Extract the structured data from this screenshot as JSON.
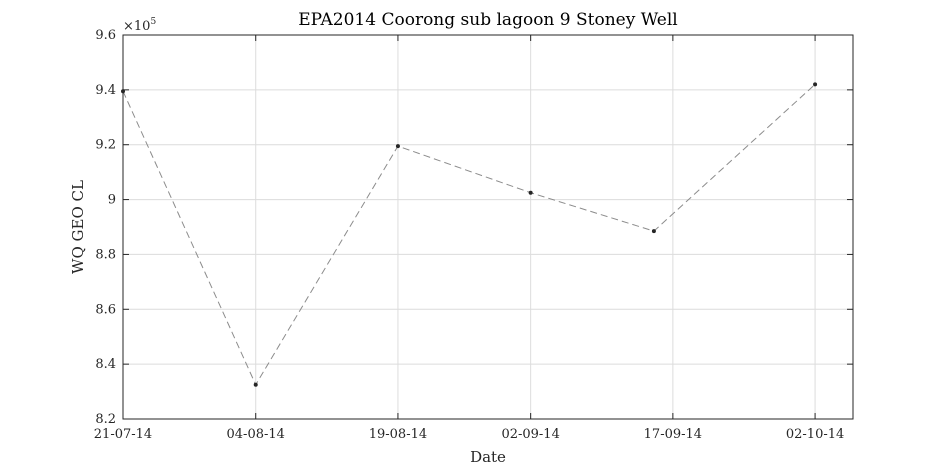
{
  "chart_data": {
    "type": "line",
    "title": "EPA2014 Coorong sub lagoon 9 Stoney Well",
    "xlabel": "Date",
    "ylabel": "WQ GEO CL",
    "y_exponent_label": "×10",
    "y_exponent": "5",
    "x_ticks": [
      "21-07-14",
      "04-08-14",
      "19-08-14",
      "02-09-14",
      "17-09-14",
      "02-10-14"
    ],
    "y_ticks": [
      "8.2",
      "8.4",
      "8.6",
      "8.8",
      "9",
      "9.2",
      "9.4",
      "9.6"
    ],
    "xlim": [
      "2014-07-21",
      "2014-10-06"
    ],
    "ylim": [
      820000,
      960000
    ],
    "grid": true,
    "series": [
      {
        "color": "#8c8c8c",
        "marker_color": "#262626",
        "line_style": "dashed",
        "points": [
          {
            "x": "2014-07-21",
            "y": 939500
          },
          {
            "x": "2014-08-04",
            "y": 832500
          },
          {
            "x": "2014-08-19",
            "y": 919500
          },
          {
            "x": "2014-09-02",
            "y": 902500
          },
          {
            "x": "2014-09-15",
            "y": 888500
          },
          {
            "x": "2014-10-02",
            "y": 942000
          }
        ]
      }
    ]
  }
}
